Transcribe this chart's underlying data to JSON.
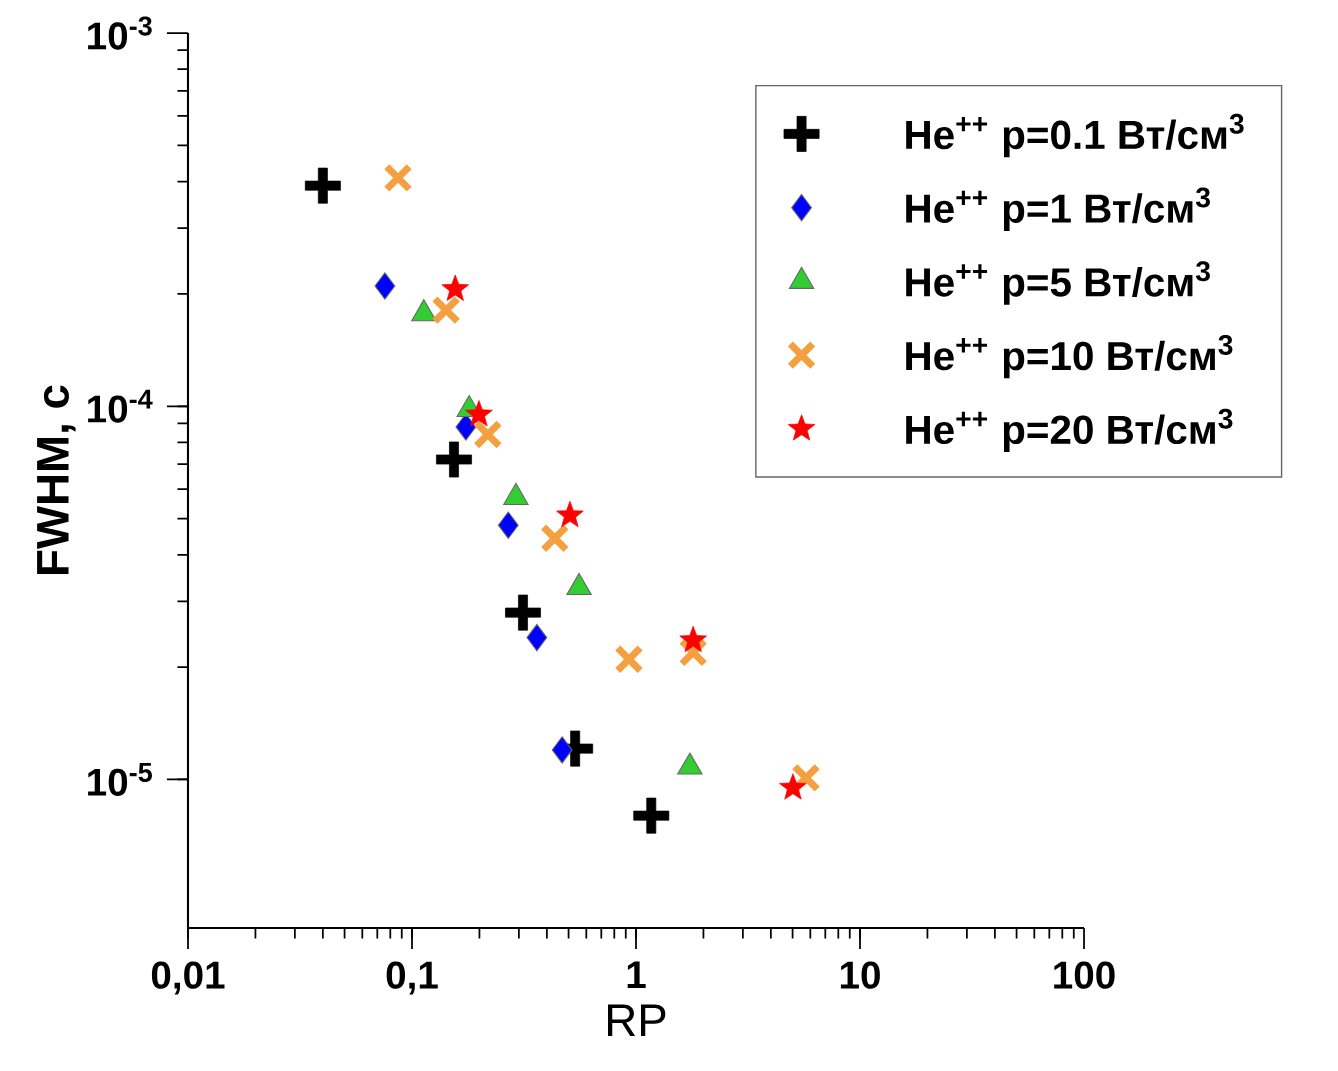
{
  "chart_data": {
    "type": "scatter",
    "xlabel": "RP",
    "ylabel": "FWHM, с",
    "log": "xy",
    "grid": false,
    "legend": "top right",
    "xlim": [
      0.01,
      100
    ],
    "ylim": [
      4e-06,
      0.001
    ],
    "xticks": [
      {
        "value": 0.01,
        "label": "0,01"
      },
      {
        "value": 0.1,
        "label": "0,1"
      },
      1,
      10,
      100
    ],
    "yticks": [
      {
        "value": 1e-05,
        "label": "10$^{-5}$"
      },
      {
        "value": 0.0001,
        "label": "10$^{-4}$"
      },
      {
        "value": 0.001,
        "label": "10$^{-3}$"
      }
    ],
    "series": [
      {
        "name": "He$^{++}$ p=0.1  Вт/см$^{3}$",
        "color": "#000000",
        "x": [
          0.04,
          0.154,
          0.313,
          0.535,
          1.17
        ],
        "values": [
          0.00039,
          7.2e-05,
          2.8e-05,
          1.21e-05,
          8e-06
        ]
      },
      {
        "name": "He$^{++}$ p=1 Вт/см$^{3}$",
        "color": "#0000ff",
        "marker": "diamond",
        "x": [
          0.0757,
          0.174,
          0.269,
          0.361,
          0.468
        ],
        "values": [
          0.00021,
          8.8e-05,
          4.8e-05,
          2.4e-05,
          1.2e-05
        ]
      },
      {
        "name": "He$^{++}$ p=5 Вт/см$^{3}$",
        "color": "#33cc33",
        "marker": "triangle",
        "x": [
          0.113,
          0.18,
          0.291,
          0.557,
          1.74
        ],
        "values": [
          0.000177,
          9.8e-05,
          5.7e-05,
          3.27e-05,
          1.08e-05
        ]
      },
      {
        "name": "He$^{++}$ p=10 Вт/см$^{3}$",
        "color": "#f4a040",
        "marker": "cross",
        "x": [
          0.0866,
          0.142,
          0.218,
          0.434,
          0.93,
          1.8,
          5.74
        ],
        "values": [
          0.000409,
          0.000181,
          8.4e-05,
          4.43e-05,
          2.1e-05,
          2.19e-05,
          1.01e-05
        ]
      },
      {
        "name": "He$^{++}$ p=20 Вт/см$^{3}$",
        "color": "#ff0000",
        "marker": "star",
        "x": [
          0.156,
          0.199,
          0.507,
          1.8,
          5.02
        ],
        "values": [
          0.000206,
          9.5e-05,
          5.1e-05,
          2.36e-05,
          9.5e-06
        ]
      }
    ]
  }
}
